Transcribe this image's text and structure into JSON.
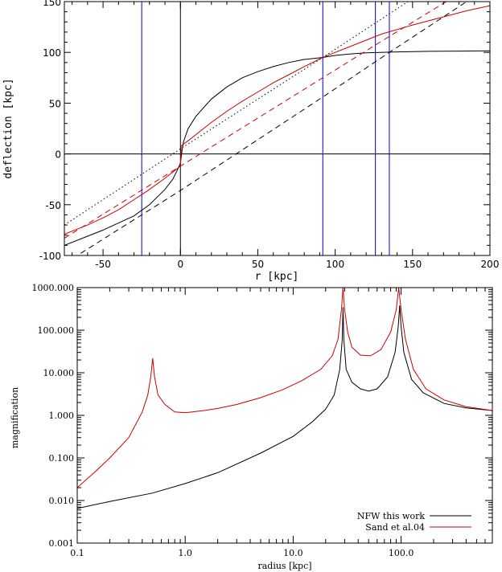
{
  "chart_data": [
    {
      "type": "line",
      "xlabel": "r [kpc]",
      "ylabel": "deflection [kpc]",
      "xlim": [
        -75,
        200
      ],
      "ylim": [
        -100,
        150
      ],
      "xticks": [
        -50,
        0,
        50,
        100,
        150,
        200
      ],
      "yticks": [
        -100,
        -50,
        0,
        50,
        100,
        150
      ],
      "vertical_lines": {
        "color": "#0000cc",
        "x": [
          -25,
          92,
          126,
          135
        ]
      },
      "reference_lines": [
        {
          "style": "solid",
          "color": "#000000",
          "orientation": "horizontal",
          "y": 0
        },
        {
          "style": "solid",
          "color": "#000000",
          "orientation": "vertical",
          "x": 0
        }
      ],
      "series": [
        {
          "color": "#000000",
          "style": "solid",
          "points": [
            [
              -75,
              -90
            ],
            [
              -60,
              -81
            ],
            [
              -50,
              -75
            ],
            [
              -40,
              -68
            ],
            [
              -30,
              -61
            ],
            [
              -20,
              -50
            ],
            [
              -10,
              -35
            ],
            [
              -5,
              -25
            ],
            [
              -2,
              -16
            ],
            [
              0,
              -9
            ],
            [
              1,
              3
            ],
            [
              2,
              12
            ],
            [
              5,
              25
            ],
            [
              10,
              37
            ],
            [
              20,
              54
            ],
            [
              30,
              66
            ],
            [
              40,
              75
            ],
            [
              50,
              81
            ],
            [
              60,
              86
            ],
            [
              70,
              90
            ],
            [
              80,
              93
            ],
            [
              92,
              95
            ],
            [
              100,
              97
            ],
            [
              110,
              98.5
            ],
            [
              120,
              99.5
            ],
            [
              140,
              100.5
            ],
            [
              160,
              101
            ],
            [
              180,
              101.3
            ],
            [
              200,
              101.5
            ]
          ]
        },
        {
          "color": "#cc0000",
          "style": "solid",
          "points": [
            [
              -75,
              -79
            ],
            [
              -60,
              -70
            ],
            [
              -50,
              -63
            ],
            [
              -40,
              -55
            ],
            [
              -30,
              -45
            ],
            [
              -25,
              -40
            ],
            [
              -20,
              -35
            ],
            [
              -10,
              -24
            ],
            [
              0,
              -12
            ],
            [
              0.5,
              8
            ],
            [
              5,
              13
            ],
            [
              10,
              19
            ],
            [
              20,
              31
            ],
            [
              30,
              42
            ],
            [
              40,
              52
            ],
            [
              50,
              61
            ],
            [
              60,
              70
            ],
            [
              70,
              78
            ],
            [
              80,
              86
            ],
            [
              92,
              95
            ],
            [
              100,
              100
            ],
            [
              110,
              106
            ],
            [
              120,
              112
            ],
            [
              130,
              118
            ],
            [
              150,
              127
            ],
            [
              170,
              135
            ],
            [
              185,
              141
            ],
            [
              200,
              146
            ]
          ]
        },
        {
          "color": "#cc0000",
          "style": "dashed",
          "points": [
            [
              -75,
              -83
            ],
            [
              0,
              -12
            ],
            [
              92,
              75
            ],
            [
              130,
              111
            ],
            [
              175,
              153
            ]
          ]
        },
        {
          "color": "#000000",
          "style": "dashed",
          "points": [
            [
              -75,
              -108
            ],
            [
              0,
              -36
            ],
            [
              92,
              56
            ],
            [
              135,
              100
            ],
            [
              200,
              165
            ]
          ]
        },
        {
          "color": "#000000",
          "style": "dotted",
          "points": [
            [
              -75,
              -70
            ],
            [
              0,
              5
            ],
            [
              92,
              95
            ],
            [
              127,
              130
            ],
            [
              160,
              163
            ]
          ]
        }
      ]
    },
    {
      "type": "line",
      "xlabel": "radius [kpc]",
      "ylabel": "magnification",
      "xscale": "log",
      "yscale": "log",
      "xlim": [
        0.1,
        700
      ],
      "ylim": [
        0.001,
        1000
      ],
      "xticks": [
        "0.1",
        "1.0",
        "10.0",
        "100.0"
      ],
      "yticks": [
        "0.001",
        "0.010",
        "0.100",
        "1.000",
        "10.000",
        "100.000",
        "1000.000"
      ],
      "legend": {
        "placement": "bottom-right",
        "entries": [
          {
            "label": "NFW this work",
            "color": "#000000"
          },
          {
            "label": "Sand et al.04",
            "color": "#cc0000"
          }
        ]
      },
      "series": [
        {
          "name": "NFW this work",
          "color": "#000000",
          "points": [
            [
              0.1,
              0.0065
            ],
            [
              0.2,
              0.0095
            ],
            [
              0.5,
              0.015
            ],
            [
              1.0,
              0.025
            ],
            [
              2.0,
              0.045
            ],
            [
              5.0,
              0.13
            ],
            [
              10,
              0.32
            ],
            [
              15,
              0.7
            ],
            [
              20,
              1.4
            ],
            [
              24,
              3
            ],
            [
              27,
              12
            ],
            [
              28.5,
              60
            ],
            [
              29,
              350
            ],
            [
              29.5,
              60
            ],
            [
              31,
              12
            ],
            [
              35,
              6
            ],
            [
              42,
              4.2
            ],
            [
              50,
              3.7
            ],
            [
              60,
              4.2
            ],
            [
              75,
              8
            ],
            [
              88,
              30
            ],
            [
              94,
              120
            ],
            [
              97,
              380
            ],
            [
              100,
              120
            ],
            [
              106,
              30
            ],
            [
              125,
              7
            ],
            [
              160,
              3.4
            ],
            [
              250,
              1.9
            ],
            [
              400,
              1.5
            ],
            [
              700,
              1.3
            ]
          ]
        },
        {
          "name": "Sand et al.04",
          "color": "#cc0000",
          "points": [
            [
              0.1,
              0.02
            ],
            [
              0.15,
              0.05
            ],
            [
              0.2,
              0.1
            ],
            [
              0.3,
              0.3
            ],
            [
              0.4,
              1.2
            ],
            [
              0.45,
              3
            ],
            [
              0.48,
              8
            ],
            [
              0.5,
              22
            ],
            [
              0.52,
              8
            ],
            [
              0.56,
              3
            ],
            [
              0.65,
              1.8
            ],
            [
              0.8,
              1.2
            ],
            [
              1.0,
              1.15
            ],
            [
              1.5,
              1.3
            ],
            [
              2.0,
              1.45
            ],
            [
              3,
              1.8
            ],
            [
              5,
              2.6
            ],
            [
              8,
              4
            ],
            [
              12,
              6.5
            ],
            [
              18,
              12
            ],
            [
              23,
              25
            ],
            [
              26,
              60
            ],
            [
              28,
              300
            ],
            [
              29,
              1000
            ],
            [
              30,
              300
            ],
            [
              32,
              90
            ],
            [
              35,
              40
            ],
            [
              42,
              26
            ],
            [
              52,
              25
            ],
            [
              65,
              35
            ],
            [
              80,
              90
            ],
            [
              90,
              300
            ],
            [
              95,
              1000
            ],
            [
              100,
              300
            ],
            [
              110,
              60
            ],
            [
              130,
              12
            ],
            [
              170,
              4.2
            ],
            [
              250,
              2.3
            ],
            [
              400,
              1.6
            ],
            [
              700,
              1.3
            ]
          ]
        }
      ]
    }
  ]
}
